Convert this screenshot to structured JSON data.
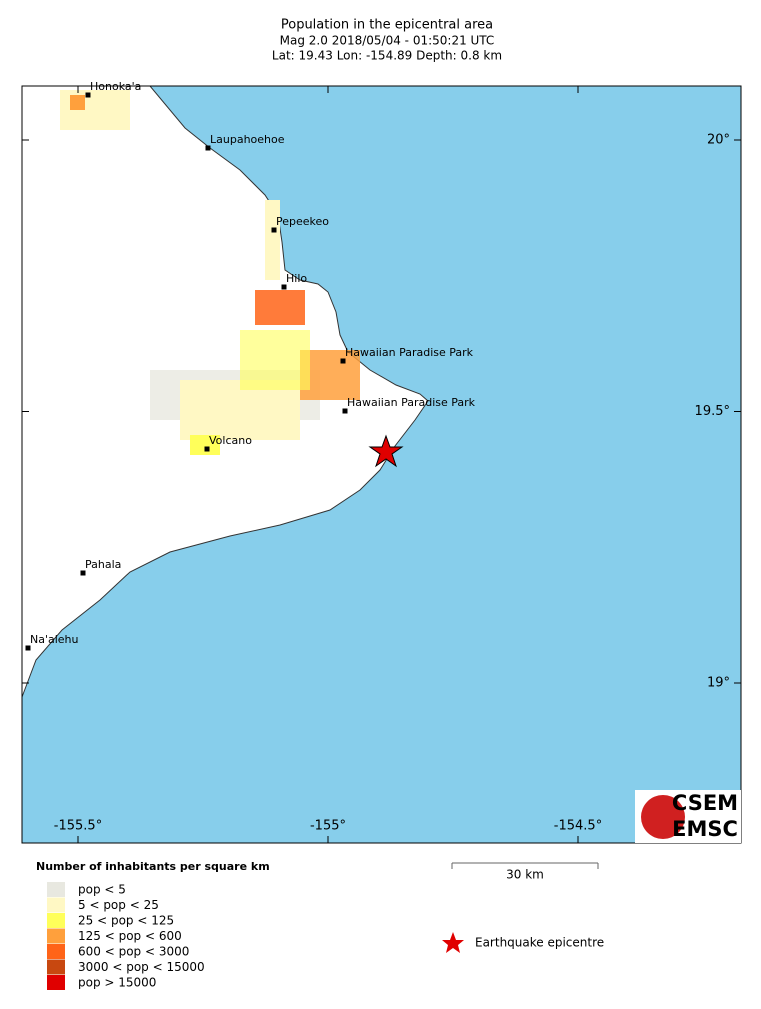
{
  "header": {
    "title": "Population in the epicentral area",
    "line1": "Mag 2.0  2018/05/04 - 01:50:21 UTC",
    "line2": "Lat: 19.43   Lon: -154.89    Depth:  0.8 km"
  },
  "map": {
    "cities": [
      "Honoka'a",
      "Laupahoehoe",
      "Pepeekeo",
      "Hilo",
      "Hawaiian Paradise Park",
      "Hawaiian Paradise Park",
      "Volcano",
      "Pahala",
      "Na'alehu"
    ],
    "xticks": [
      {
        "value": -155.5,
        "label": "-155.5°"
      },
      {
        "value": -155,
        "label": "-155°"
      },
      {
        "value": -154.5,
        "label": "-154.5°"
      }
    ],
    "yticks": [
      {
        "value": 20,
        "label": "20°"
      },
      {
        "value": 19.5,
        "label": "19.5°"
      },
      {
        "value": 19,
        "label": "19°"
      }
    ],
    "scale_bar": "30 km",
    "epicentre_label": "Earthquake epicentre",
    "logo": [
      "CSEM",
      "EMSC"
    ]
  },
  "legend": {
    "title": "Number of inhabitants per square km",
    "items": [
      {
        "label": "pop < 5",
        "color": "#e8e8e0"
      },
      {
        "label": "5 < pop < 25",
        "color": "#fff8c4"
      },
      {
        "label": "25 < pop < 125",
        "color": "#ffff5a"
      },
      {
        "label": "125 < pop < 600",
        "color": "#ffa03c"
      },
      {
        "label": "600 < pop < 3000",
        "color": "#ff6418"
      },
      {
        "label": "3000 < pop < 15000",
        "color": "#c84810"
      },
      {
        "label": "pop > 15000",
        "color": "#e00000"
      }
    ]
  }
}
